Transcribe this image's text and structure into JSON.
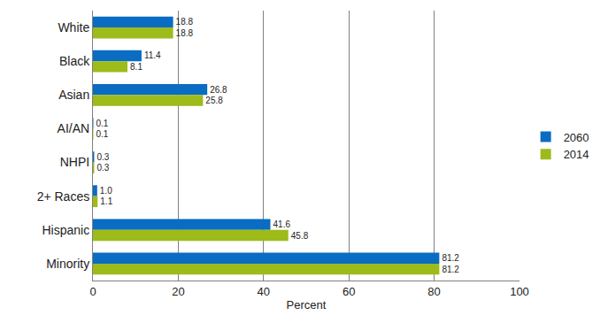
{
  "chart_data": {
    "type": "bar",
    "orientation": "horizontal",
    "categories": [
      "White",
      "Black",
      "Asian",
      "AI/AN",
      "NHPI",
      "2+ Races",
      "Hispanic",
      "Minority"
    ],
    "series": [
      {
        "name": "2060",
        "color": "#0a6cc2",
        "values": [
          18.8,
          11.4,
          26.8,
          0.1,
          0.3,
          1.0,
          41.6,
          81.2
        ],
        "value_labels": [
          "18.8",
          "11.4",
          "26.8",
          "0.1",
          "0.3",
          "1.0",
          "41.6",
          "81.2"
        ]
      },
      {
        "name": "2014",
        "color": "#9dbb1a",
        "values": [
          18.8,
          8.1,
          25.8,
          0.1,
          0.3,
          1.1,
          45.8,
          81.2
        ],
        "value_labels": [
          "18.8",
          "8.1",
          "25.8",
          "0.1",
          "0.3",
          "1.1",
          "45.8",
          "81.2"
        ]
      }
    ],
    "x_label": "Percent",
    "xlim": [
      0,
      100
    ],
    "xticks": [
      0,
      20,
      40,
      60,
      80,
      100
    ],
    "grid": true,
    "legend": "right",
    "data_labels": true
  }
}
